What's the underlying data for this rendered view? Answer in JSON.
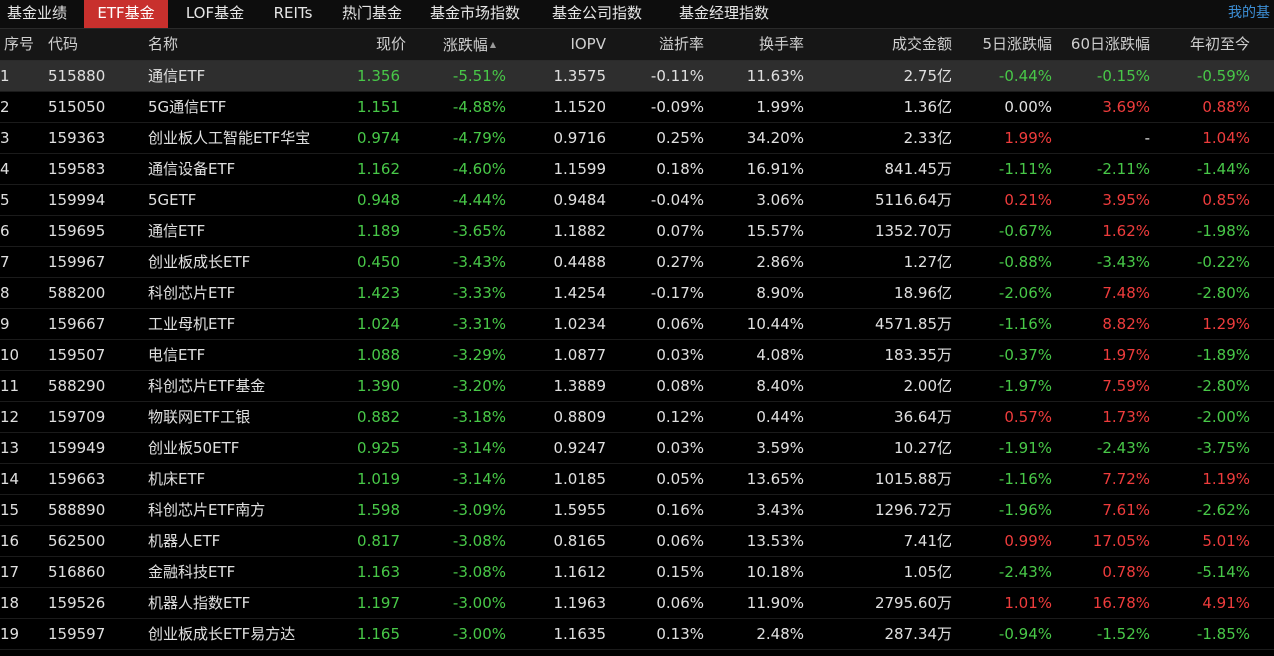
{
  "tabs": [
    {
      "label": "基金业绩",
      "active": false
    },
    {
      "label": "ETF基金",
      "active": true
    },
    {
      "label": "LOF基金",
      "active": false
    },
    {
      "label": "REITs",
      "active": false
    },
    {
      "label": "热门基金",
      "active": false
    },
    {
      "label": "基金市场指数",
      "active": false
    },
    {
      "label": "基金公司指数",
      "active": false
    },
    {
      "label": "基金经理指数",
      "active": false
    }
  ],
  "tab_right": "我的基",
  "columns": [
    "序号",
    "代码",
    "名称",
    "现价",
    "涨跌幅",
    "IOPV",
    "溢折率",
    "换手率",
    "成交金额",
    "5日涨跌幅",
    "60日涨跌幅",
    "年初至今"
  ],
  "sort": {
    "column": "涨跌幅",
    "icon": "sort-asc-icon"
  },
  "colors": {
    "up": "#ee3c3c",
    "down": "#48c848",
    "flat": "#e0e0e0",
    "active_tab": "#c8302d",
    "link": "#3d8fd6"
  },
  "rows": [
    {
      "idx": "1",
      "code": "515880",
      "name": "通信ETF",
      "price": "1.356",
      "chg": "-5.51%",
      "iopv": "1.3575",
      "premium": "-0.11%",
      "turnover": "11.63%",
      "amount": "2.75亿",
      "d5": "-0.44%",
      "d60": "-0.15%",
      "ytd": "-0.59%",
      "selected": true
    },
    {
      "idx": "2",
      "code": "515050",
      "name": "5G通信ETF",
      "price": "1.151",
      "chg": "-4.88%",
      "iopv": "1.1520",
      "premium": "-0.09%",
      "turnover": "1.99%",
      "amount": "1.36亿",
      "d5": "0.00%",
      "d60": "3.69%",
      "ytd": "0.88%"
    },
    {
      "idx": "3",
      "code": "159363",
      "name": "创业板人工智能ETF华宝",
      "price": "0.974",
      "chg": "-4.79%",
      "iopv": "0.9716",
      "premium": "0.25%",
      "turnover": "34.20%",
      "amount": "2.33亿",
      "d5": "1.99%",
      "d60": "-",
      "ytd": "1.04%"
    },
    {
      "idx": "4",
      "code": "159583",
      "name": "通信设备ETF",
      "price": "1.162",
      "chg": "-4.60%",
      "iopv": "1.1599",
      "premium": "0.18%",
      "turnover": "16.91%",
      "amount": "841.45万",
      "d5": "-1.11%",
      "d60": "-2.11%",
      "ytd": "-1.44%"
    },
    {
      "idx": "5",
      "code": "159994",
      "name": "5GETF",
      "price": "0.948",
      "chg": "-4.44%",
      "iopv": "0.9484",
      "premium": "-0.04%",
      "turnover": "3.06%",
      "amount": "5116.64万",
      "d5": "0.21%",
      "d60": "3.95%",
      "ytd": "0.85%"
    },
    {
      "idx": "6",
      "code": "159695",
      "name": "通信ETF",
      "price": "1.189",
      "chg": "-3.65%",
      "iopv": "1.1882",
      "premium": "0.07%",
      "turnover": "15.57%",
      "amount": "1352.70万",
      "d5": "-0.67%",
      "d60": "1.62%",
      "ytd": "-1.98%"
    },
    {
      "idx": "7",
      "code": "159967",
      "name": "创业板成长ETF",
      "price": "0.450",
      "chg": "-3.43%",
      "iopv": "0.4488",
      "premium": "0.27%",
      "turnover": "2.86%",
      "amount": "1.27亿",
      "d5": "-0.88%",
      "d60": "-3.43%",
      "ytd": "-0.22%"
    },
    {
      "idx": "8",
      "code": "588200",
      "name": "科创芯片ETF",
      "price": "1.423",
      "chg": "-3.33%",
      "iopv": "1.4254",
      "premium": "-0.17%",
      "turnover": "8.90%",
      "amount": "18.96亿",
      "d5": "-2.06%",
      "d60": "7.48%",
      "ytd": "-2.80%"
    },
    {
      "idx": "9",
      "code": "159667",
      "name": "工业母机ETF",
      "price": "1.024",
      "chg": "-3.31%",
      "iopv": "1.0234",
      "premium": "0.06%",
      "turnover": "10.44%",
      "amount": "4571.85万",
      "d5": "-1.16%",
      "d60": "8.82%",
      "ytd": "1.29%"
    },
    {
      "idx": "10",
      "code": "159507",
      "name": "电信ETF",
      "price": "1.088",
      "chg": "-3.29%",
      "iopv": "1.0877",
      "premium": "0.03%",
      "turnover": "4.08%",
      "amount": "183.35万",
      "d5": "-0.37%",
      "d60": "1.97%",
      "ytd": "-1.89%"
    },
    {
      "idx": "11",
      "code": "588290",
      "name": "科创芯片ETF基金",
      "price": "1.390",
      "chg": "-3.20%",
      "iopv": "1.3889",
      "premium": "0.08%",
      "turnover": "8.40%",
      "amount": "2.00亿",
      "d5": "-1.97%",
      "d60": "7.59%",
      "ytd": "-2.80%"
    },
    {
      "idx": "12",
      "code": "159709",
      "name": "物联网ETF工银",
      "price": "0.882",
      "chg": "-3.18%",
      "iopv": "0.8809",
      "premium": "0.12%",
      "turnover": "0.44%",
      "amount": "36.64万",
      "d5": "0.57%",
      "d60": "1.73%",
      "ytd": "-2.00%"
    },
    {
      "idx": "13",
      "code": "159949",
      "name": "创业板50ETF",
      "price": "0.925",
      "chg": "-3.14%",
      "iopv": "0.9247",
      "premium": "0.03%",
      "turnover": "3.59%",
      "amount": "10.27亿",
      "d5": "-1.91%",
      "d60": "-2.43%",
      "ytd": "-3.75%"
    },
    {
      "idx": "14",
      "code": "159663",
      "name": "机床ETF",
      "price": "1.019",
      "chg": "-3.14%",
      "iopv": "1.0185",
      "premium": "0.05%",
      "turnover": "13.65%",
      "amount": "1015.88万",
      "d5": "-1.16%",
      "d60": "7.72%",
      "ytd": "1.19%"
    },
    {
      "idx": "15",
      "code": "588890",
      "name": "科创芯片ETF南方",
      "price": "1.598",
      "chg": "-3.09%",
      "iopv": "1.5955",
      "premium": "0.16%",
      "turnover": "3.43%",
      "amount": "1296.72万",
      "d5": "-1.96%",
      "d60": "7.61%",
      "ytd": "-2.62%"
    },
    {
      "idx": "16",
      "code": "562500",
      "name": "机器人ETF",
      "price": "0.817",
      "chg": "-3.08%",
      "iopv": "0.8165",
      "premium": "0.06%",
      "turnover": "13.53%",
      "amount": "7.41亿",
      "d5": "0.99%",
      "d60": "17.05%",
      "ytd": "5.01%"
    },
    {
      "idx": "17",
      "code": "516860",
      "name": "金融科技ETF",
      "price": "1.163",
      "chg": "-3.08%",
      "iopv": "1.1612",
      "premium": "0.15%",
      "turnover": "10.18%",
      "amount": "1.05亿",
      "d5": "-2.43%",
      "d60": "0.78%",
      "ytd": "-5.14%"
    },
    {
      "idx": "18",
      "code": "159526",
      "name": "机器人指数ETF",
      "price": "1.197",
      "chg": "-3.00%",
      "iopv": "1.1963",
      "premium": "0.06%",
      "turnover": "11.90%",
      "amount": "2795.60万",
      "d5": "1.01%",
      "d60": "16.78%",
      "ytd": "4.91%"
    },
    {
      "idx": "19",
      "code": "159597",
      "name": "创业板成长ETF易方达",
      "price": "1.165",
      "chg": "-3.00%",
      "iopv": "1.1635",
      "premium": "0.13%",
      "turnover": "2.48%",
      "amount": "287.34万",
      "d5": "-0.94%",
      "d60": "-1.52%",
      "ytd": "-1.85%"
    }
  ]
}
